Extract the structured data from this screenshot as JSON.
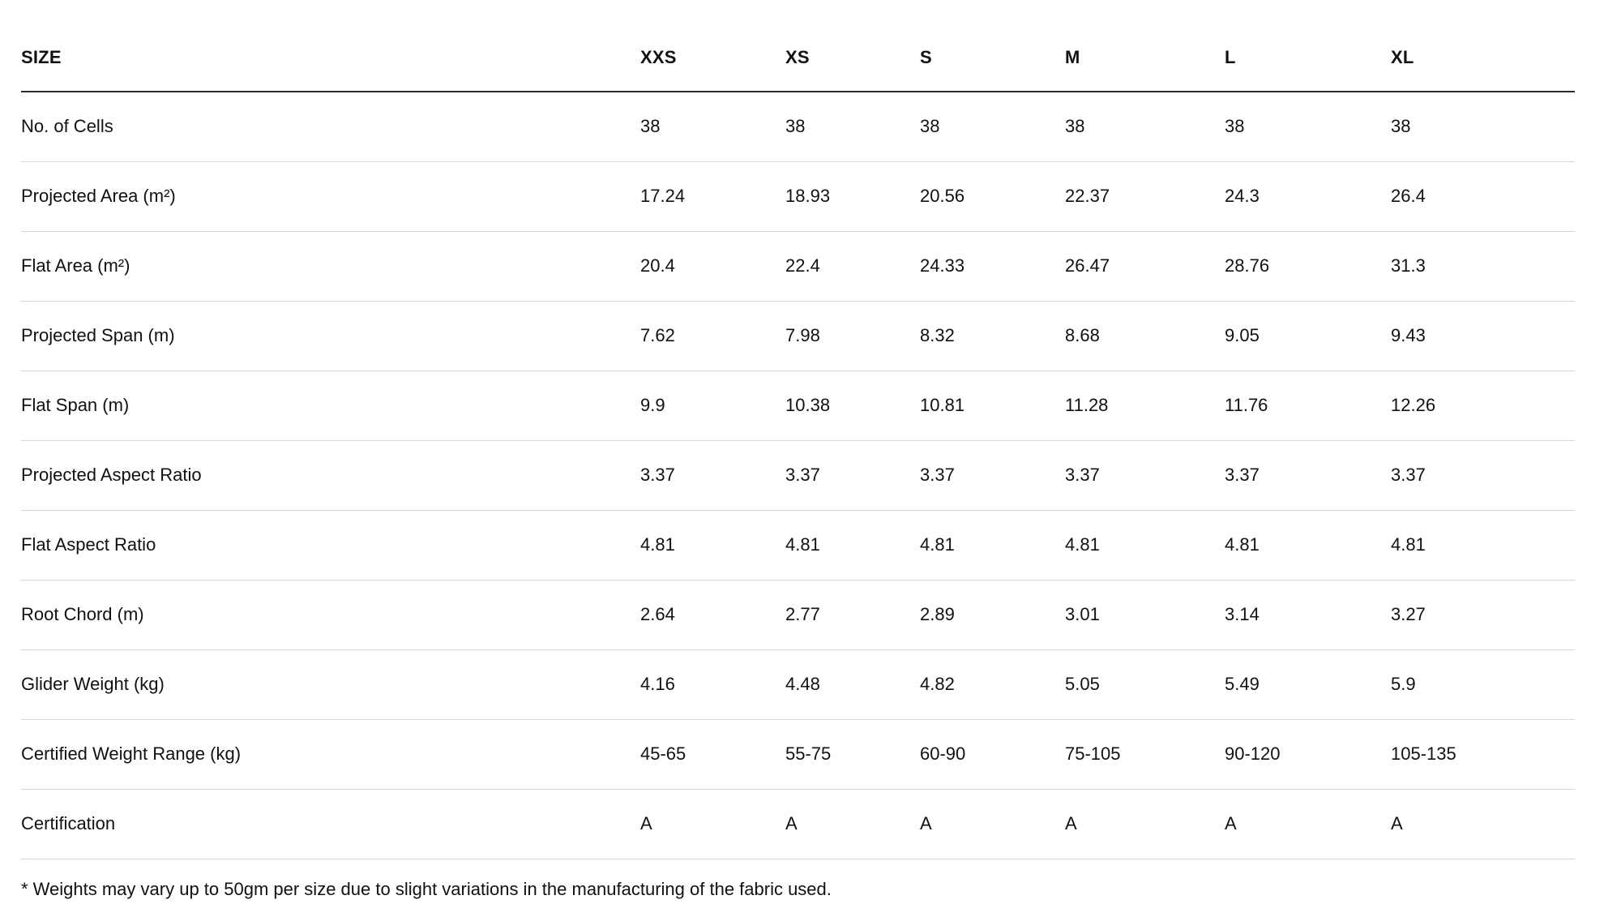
{
  "chart_data": {
    "type": "table",
    "columns": [
      "SIZE",
      "XXS",
      "XS",
      "S",
      "M",
      "L",
      "XL"
    ],
    "rows": [
      {
        "label": "No. of Cells",
        "values": [
          "38",
          "38",
          "38",
          "38",
          "38",
          "38"
        ]
      },
      {
        "label": "Projected Area (m²)",
        "values": [
          "17.24",
          "18.93",
          "20.56",
          "22.37",
          "24.3",
          "26.4"
        ]
      },
      {
        "label": "Flat Area (m²)",
        "values": [
          "20.4",
          "22.4",
          "24.33",
          "26.47",
          "28.76",
          "31.3"
        ]
      },
      {
        "label": "Projected Span (m)",
        "values": [
          "7.62",
          "7.98",
          "8.32",
          "8.68",
          "9.05",
          "9.43"
        ]
      },
      {
        "label": "Flat Span (m)",
        "values": [
          "9.9",
          "10.38",
          "10.81",
          "11.28",
          "11.76",
          "12.26"
        ]
      },
      {
        "label": "Projected Aspect Ratio",
        "values": [
          "3.37",
          "3.37",
          "3.37",
          "3.37",
          "3.37",
          "3.37"
        ]
      },
      {
        "label": "Flat Aspect Ratio",
        "values": [
          "4.81",
          "4.81",
          "4.81",
          "4.81",
          "4.81",
          "4.81"
        ]
      },
      {
        "label": "Root Chord (m)",
        "values": [
          "2.64",
          "2.77",
          "2.89",
          "3.01",
          "3.14",
          "3.27"
        ]
      },
      {
        "label": "Glider Weight (kg)",
        "values": [
          "4.16",
          "4.48",
          "4.82",
          "5.05",
          "5.49",
          "5.9"
        ]
      },
      {
        "label": "Certified Weight Range (kg)",
        "values": [
          "45-65",
          "55-75",
          "60-90",
          "75-105",
          "90-120",
          "105-135"
        ]
      },
      {
        "label": "Certification",
        "values": [
          "A",
          "A",
          "A",
          "A",
          "A",
          "A"
        ]
      }
    ],
    "footnote": "* Weights may vary up to 50gm per size due to slight variations in the manufacturing of the fabric used.",
    "layout": {
      "grid": "horizontal-row-separators",
      "header_position": "top"
    }
  },
  "colors": {
    "background": "#ffffff",
    "text": "#111111",
    "header_border": "#2b2b2b",
    "row_border": "#d7d7d7"
  }
}
